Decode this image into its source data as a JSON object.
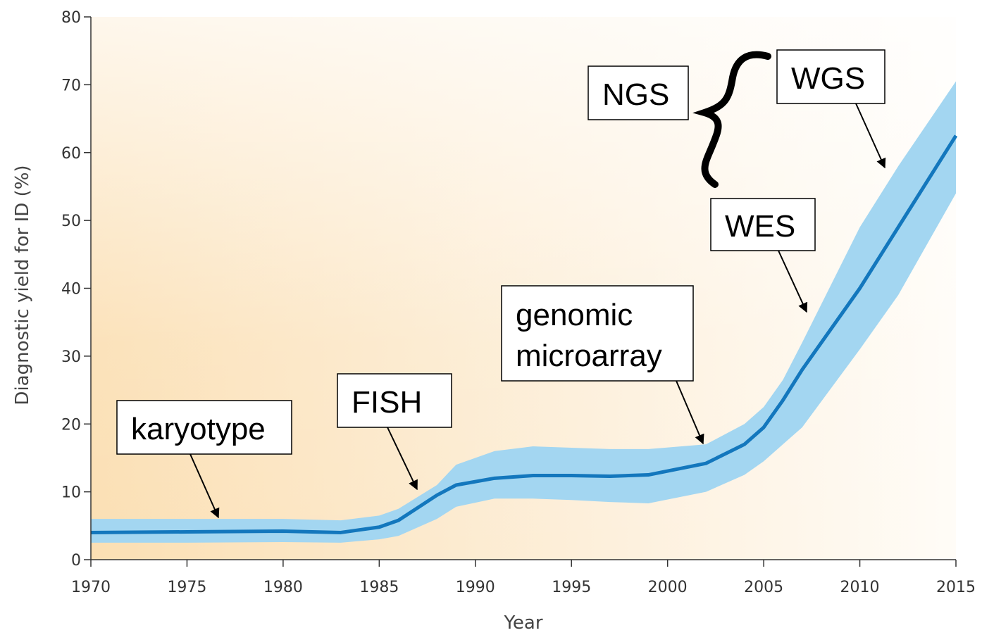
{
  "chart_data": {
    "type": "line",
    "x_label": "Year",
    "y_label": "Diagnostic yield for ID (%)",
    "x": [
      1970,
      1975,
      1980,
      1983,
      1985,
      1986,
      1988,
      1989,
      1991,
      1993,
      1995,
      1997,
      1999,
      2002,
      2004,
      2005,
      2006,
      2007,
      2010,
      2012,
      2015
    ],
    "values": [
      4,
      4.1,
      4.2,
      4,
      4.8,
      5.8,
      9.5,
      11,
      12,
      12.4,
      12.4,
      12.3,
      12.5,
      14.2,
      17,
      19.5,
      23.5,
      28,
      40,
      49,
      62.5
    ],
    "color": "#1377bd",
    "band": {
      "lower": [
        2.5,
        2.5,
        2.6,
        2.5,
        3,
        3.5,
        6,
        7.8,
        9,
        9,
        8.8,
        8.5,
        8.3,
        10,
        12.5,
        14.5,
        17,
        19.5,
        31,
        39,
        54
      ],
      "upper": [
        6,
        6,
        6,
        5.8,
        6.5,
        7.5,
        11,
        14,
        16,
        16.7,
        16.5,
        16.3,
        16.3,
        17,
        20,
        22.5,
        26.5,
        32,
        49,
        58,
        70.5
      ],
      "color": "#a3d6f1"
    },
    "xlim": [
      1970,
      2015
    ],
    "xticks": [
      1970,
      1975,
      1980,
      1985,
      1990,
      1995,
      2000,
      2005,
      2010,
      2015
    ],
    "ylim": [
      0,
      80
    ],
    "yticks": [
      0,
      10,
      20,
      30,
      40,
      50,
      60,
      70,
      80
    ],
    "annotations": [
      [
        "karyotype"
      ],
      [
        "FISH"
      ],
      [
        "genomic",
        "microarray"
      ],
      [
        "WES"
      ],
      [
        "WGS"
      ],
      [
        "NGS"
      ]
    ]
  }
}
